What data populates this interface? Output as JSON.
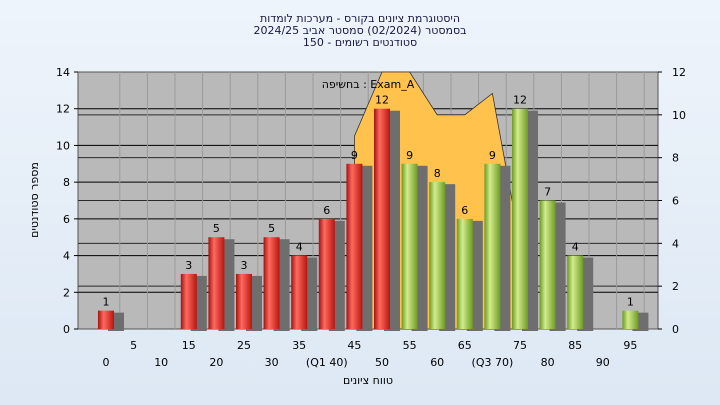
{
  "chart_data": {
    "type": "bar",
    "title_lines": [
      "היסטוגרמת ציונים בקורס - מערכות לומדות",
      "בסמסטר  (02/2024)  סמסטר אביב 2024/25",
      "סטודנטים רשומים - 150"
    ],
    "annotation": "בחשיפה : Exam_A",
    "xlabel": "טווח ציונים",
    "ylabel": "מספר סטודנטים",
    "categories": [
      "0",
      "5",
      "10",
      "15",
      "20",
      "25",
      "30",
      "35",
      "(Q1 40)",
      "45",
      "50",
      "55",
      "60",
      "65",
      "(Q3 70)",
      "75",
      "80",
      "85",
      "90",
      "95"
    ],
    "values": [
      1,
      0,
      0,
      3,
      5,
      3,
      5,
      4,
      6,
      9,
      12,
      9,
      8,
      6,
      9,
      12,
      7,
      4,
      0,
      1
    ],
    "series_colors": [
      "red",
      "red",
      "red",
      "red",
      "red",
      "red",
      "red",
      "red",
      "red",
      "red",
      "red",
      "green",
      "green",
      "green",
      "green",
      "green",
      "green",
      "green",
      "green",
      "green"
    ],
    "area": {
      "x": [
        45,
        50,
        55,
        60,
        65,
        70,
        75
      ],
      "y": [
        9,
        12,
        12,
        10,
        10,
        11,
        4
      ],
      "color": "#ffc34d"
    },
    "ylim_left": [
      0,
      14
    ],
    "yticks_left": [
      0,
      2,
      4,
      6,
      8,
      10,
      12,
      14
    ],
    "ylim_right": [
      0,
      12
    ],
    "yticks_right": [
      0,
      2,
      4,
      6,
      8,
      10,
      12
    ],
    "grid": true,
    "colors": {
      "red": "#e8302a",
      "green": "#9cc84a",
      "plot_bg": "#b9b9b9"
    }
  }
}
